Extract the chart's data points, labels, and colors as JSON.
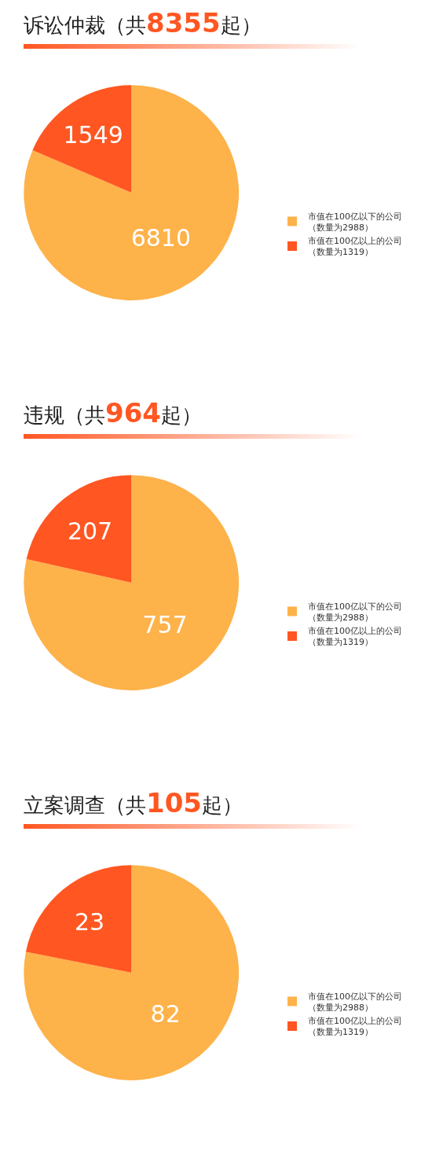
{
  "chart_data": [
    {
      "type": "pie",
      "title": "诉讼仲裁（共8355起）",
      "categories": [
        "市值在100亿以下的公司（数量为2988）",
        "市值在100亿以上的公司（数量为1319）"
      ],
      "values": [
        6810,
        1549
      ],
      "colors": [
        "#feb24a",
        "#ff5622"
      ],
      "data_labels": true,
      "legend": "right"
    },
    {
      "type": "pie",
      "title": "违规（共964起）",
      "categories": [
        "市值在100亿以下的公司（数量为2988）",
        "市值在100亿以上的公司（数量为1319）"
      ],
      "values": [
        757,
        207
      ],
      "colors": [
        "#feb24a",
        "#ff5622"
      ],
      "data_labels": true,
      "legend": "right"
    },
    {
      "type": "pie",
      "title": "立案调查（共105起）",
      "categories": [
        "市值在100亿以下的公司（数量为2988）",
        "市值在100亿以上的公司（数量为1319）"
      ],
      "values": [
        82,
        23
      ],
      "colors": [
        "#feb24a",
        "#ff5622"
      ],
      "data_labels": true,
      "legend": "right"
    }
  ]
}
